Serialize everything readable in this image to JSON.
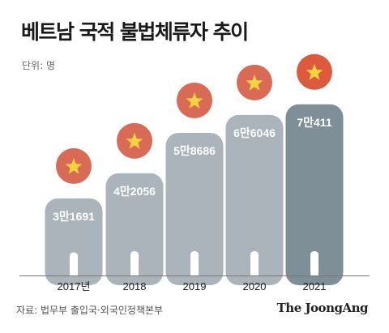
{
  "header": {
    "title": "베트남 국적 불법체류자 추이",
    "unit": "단위: 명"
  },
  "footer": {
    "source": "자료: 법무부 출입국·외국인정책본부",
    "brand": "The JoongAng"
  },
  "colors": {
    "figure_default": "#aab4ba",
    "figure_highlight": "#7f8f98",
    "head_red": "#d96a55",
    "head_red_highlight": "#dd5a3e",
    "star": "#f4d341",
    "axis_line": "#777777",
    "label_text": "#ffffff"
  },
  "chart_data": {
    "type": "bar",
    "categories": [
      "2017년",
      "2018",
      "2019",
      "2020",
      "2021"
    ],
    "values": [
      31691,
      42056,
      58686,
      66046,
      70411
    ],
    "value_labels": [
      "3만1691",
      "4만2056",
      "5만8686",
      "6만6046",
      "7만411"
    ],
    "highlight_index": 4,
    "icon": "person-figure-with-vietnam-flag-head",
    "title": "베트남 국적 불법체류자 추이",
    "ylabel": "단위: 명",
    "ylim": [
      0,
      80000
    ]
  }
}
